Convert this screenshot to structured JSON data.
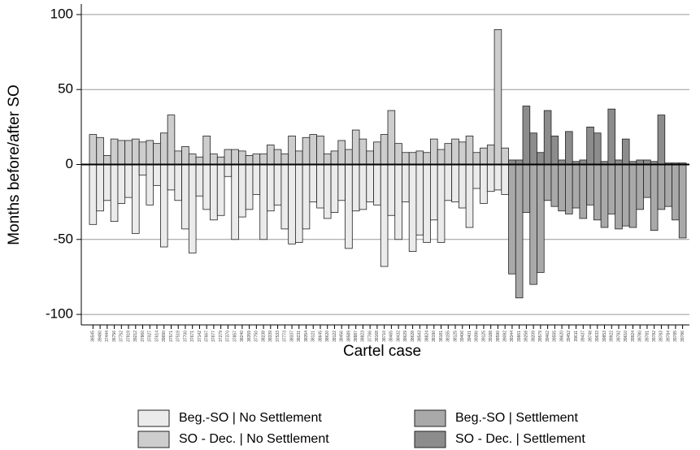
{
  "chart_data": {
    "type": "bar",
    "x_label": "Cartel case",
    "y_label": "Months before/after SO",
    "categories": [
      "36545",
      "39480",
      "37444",
      "36756",
      "37752",
      "37919",
      "39212",
      "37860",
      "37027",
      "37614",
      "39690",
      "37571",
      "37519",
      "37700",
      "37671",
      "37142",
      "37667",
      "37677",
      "37279",
      "37370",
      "37857",
      "38240",
      "38359",
      "37750",
      "38238",
      "38339",
      "37533",
      "37773",
      "38337",
      "38231",
      "38354",
      "38121",
      "38645",
      "38620",
      "38122",
      "38456",
      "38589",
      "38887",
      "38823",
      "37766",
      "38168",
      "38710",
      "38465",
      "38432",
      "38629",
      "38628",
      "38543",
      "38824",
      "38190",
      "38181",
      "38155",
      "38125",
      "39406",
      "39401",
      "39396",
      "39125",
      "39188",
      "38590",
      "39092",
      "38344",
      "39861",
      "39258",
      "38209",
      "39579",
      "39462",
      "39555",
      "39620",
      "39452",
      "39611",
      "39437",
      "39748",
      "39633",
      "39853",
      "39922",
      "39792",
      "39610",
      "39924",
      "39780",
      "39781",
      "39782",
      "39783",
      "39784",
      "39785",
      "39786"
    ],
    "series": [
      {
        "name": "Beg.-SO | No Settlement",
        "color": "#ebebeb",
        "values": [
          -40,
          -31,
          -24,
          -38,
          -26,
          -22,
          -46,
          -7,
          -27,
          -14,
          -55,
          -17,
          -24,
          -43,
          -59,
          -21,
          -30,
          -37,
          -34,
          -8,
          -50,
          -35,
          -30,
          -20,
          -50,
          -31,
          -27,
          -43,
          -53,
          -52,
          -43,
          -25,
          -29,
          -36,
          -32,
          -24,
          -56,
          -31,
          -30,
          -25,
          -27,
          -68,
          -34,
          -50,
          -25,
          -58,
          -47,
          -52,
          -37,
          -52,
          -24,
          -25,
          -29,
          -42,
          -16,
          -26,
          -18,
          -17,
          -20,
          null,
          null,
          null,
          null,
          null,
          null,
          null,
          null,
          null,
          null,
          null,
          null,
          null,
          null,
          null,
          null,
          null,
          null,
          null,
          null,
          null,
          null,
          null,
          null,
          null
        ]
      },
      {
        "name": "SO - Dec. | No Settlement",
        "color": "#cdcdcd",
        "values": [
          20,
          18,
          6,
          17,
          16,
          16,
          17,
          15,
          16,
          14,
          21,
          33,
          9,
          12,
          7,
          5,
          19,
          7,
          5,
          10,
          10,
          9,
          6,
          7,
          7,
          13,
          10,
          7,
          19,
          9,
          18,
          20,
          19,
          7,
          9,
          16,
          10,
          23,
          17,
          9,
          15,
          20,
          36,
          14,
          8,
          8,
          9,
          8,
          17,
          10,
          14,
          17,
          15,
          19,
          8,
          11,
          13,
          90,
          11,
          null,
          null,
          null,
          null,
          null,
          null,
          null,
          null,
          null,
          null,
          null,
          null,
          null,
          null,
          null,
          null,
          null,
          null,
          null,
          null,
          null,
          null,
          null,
          null,
          null
        ]
      },
      {
        "name": "Beg.-SO | Settlement",
        "color": "#a9a9a9",
        "values": [
          null,
          null,
          null,
          null,
          null,
          null,
          null,
          null,
          null,
          null,
          null,
          null,
          null,
          null,
          null,
          null,
          null,
          null,
          null,
          null,
          null,
          null,
          null,
          null,
          null,
          null,
          null,
          null,
          null,
          null,
          null,
          null,
          null,
          null,
          null,
          null,
          null,
          null,
          null,
          null,
          null,
          null,
          null,
          null,
          null,
          null,
          null,
          null,
          null,
          null,
          null,
          null,
          null,
          null,
          null,
          null,
          null,
          null,
          null,
          -73,
          -89,
          -32,
          -80,
          -72,
          -24,
          -28,
          -31,
          -33,
          -29,
          -36,
          -27,
          -37,
          -42,
          -33,
          -43,
          -41,
          -42,
          -30,
          -22,
          -44,
          -30,
          -28,
          -37,
          -49
        ]
      },
      {
        "name": "SO - Dec. | Settlement",
        "color": "#8c8c8c",
        "values": [
          null,
          null,
          null,
          null,
          null,
          null,
          null,
          null,
          null,
          null,
          null,
          null,
          null,
          null,
          null,
          null,
          null,
          null,
          null,
          null,
          null,
          null,
          null,
          null,
          null,
          null,
          null,
          null,
          null,
          null,
          null,
          null,
          null,
          null,
          null,
          null,
          null,
          null,
          null,
          null,
          null,
          null,
          null,
          null,
          null,
          null,
          null,
          null,
          null,
          null,
          null,
          null,
          null,
          null,
          null,
          null,
          null,
          null,
          null,
          3,
          3,
          39,
          21,
          8,
          36,
          19,
          3,
          22,
          2,
          3,
          25,
          21,
          2,
          37,
          3,
          17,
          2,
          3,
          3,
          2,
          33,
          1,
          1,
          1
        ]
      }
    ],
    "ylim": [
      -107,
      107
    ],
    "yticks": [
      -100,
      -50,
      0,
      50,
      100
    ],
    "grid": true
  }
}
